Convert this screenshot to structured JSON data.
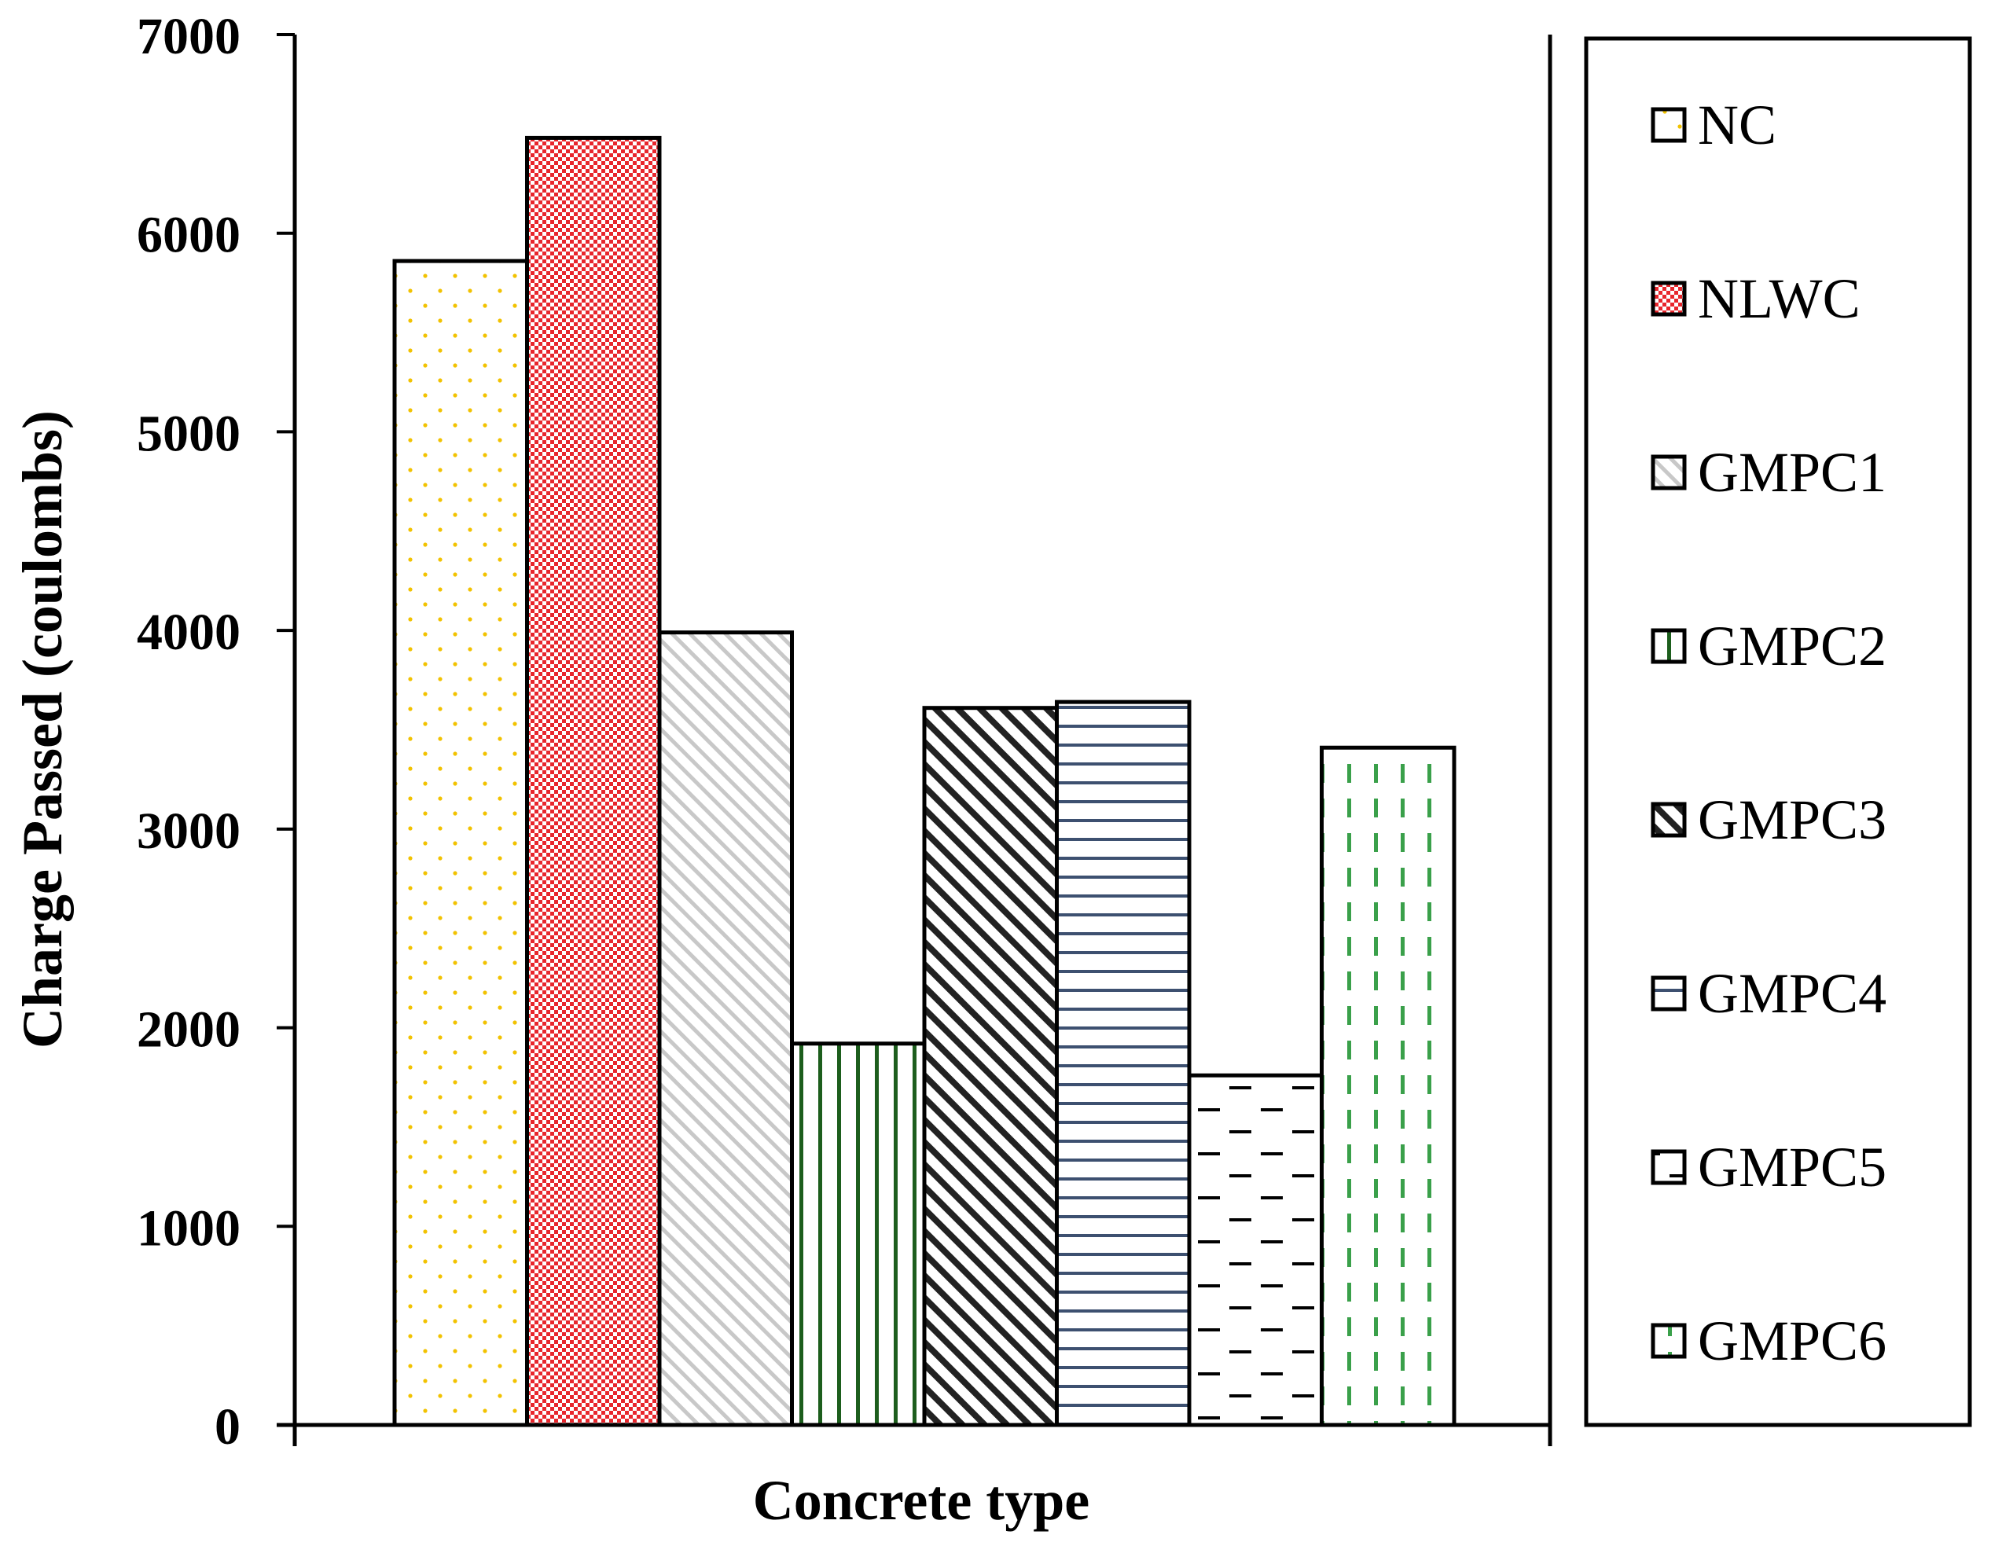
{
  "chart_data": {
    "type": "bar",
    "title": "",
    "xlabel": "Concrete type",
    "ylabel": "Charge Passed (coulombs)",
    "ylim": [
      0,
      7000
    ],
    "yticks": [
      0,
      1000,
      2000,
      3000,
      4000,
      5000,
      6000,
      7000
    ],
    "grid": false,
    "legend_position": "right",
    "series": [
      {
        "name": "NC",
        "value": 5860,
        "color": "#f2c200",
        "pattern": "dots"
      },
      {
        "name": "NLWC",
        "value": 6480,
        "color": "#e8262c",
        "pattern": "checker"
      },
      {
        "name": "GMPC1",
        "value": 3990,
        "color": "#c8c8c8",
        "pattern": "diagonal-light"
      },
      {
        "name": "GMPC2",
        "value": 1920,
        "color": "#1d5e1d",
        "pattern": "vertical-lines"
      },
      {
        "name": "GMPC3",
        "value": 3610,
        "color": "#222222",
        "pattern": "diagonal-dark"
      },
      {
        "name": "GMPC4",
        "value": 3640,
        "color": "#3d5070",
        "pattern": "horizontal-lines"
      },
      {
        "name": "GMPC5",
        "value": 1760,
        "color": "#000000",
        "pattern": "horizontal-dashes"
      },
      {
        "name": "GMPC6",
        "value": 3410,
        "color": "#3aa04a",
        "pattern": "vertical-dashes"
      }
    ]
  }
}
